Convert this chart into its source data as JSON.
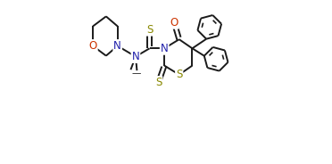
{
  "bg_color": "#ffffff",
  "line_color": "#1a1a1a",
  "atom_colors": {
    "N": "#2020aa",
    "O": "#cc3300",
    "S": "#888800"
  },
  "line_width": 1.4,
  "font_size": 8.5,
  "figsize": [
    3.72,
    1.84
  ],
  "dpi": 100,
  "xlim": [
    0,
    1
  ],
  "ylim": [
    0,
    1
  ]
}
